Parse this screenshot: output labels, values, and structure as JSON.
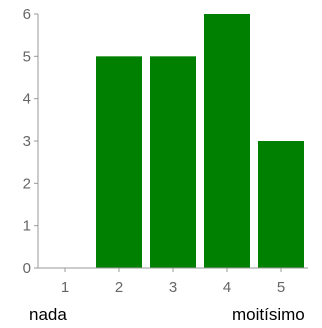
{
  "chart_data": {
    "type": "bar",
    "categories": [
      "1",
      "2",
      "3",
      "4",
      "5"
    ],
    "values": [
      0,
      5,
      5,
      6,
      3
    ],
    "ylim": [
      0,
      6
    ],
    "yticks": [
      "0",
      "1",
      "2",
      "3",
      "4",
      "5",
      "6"
    ],
    "grid": false,
    "bar_color": "#008000",
    "axis_color": "#999999",
    "tick_label_color": "#666666"
  },
  "scale_labels": {
    "low": "nada",
    "high": "moitísimo"
  }
}
